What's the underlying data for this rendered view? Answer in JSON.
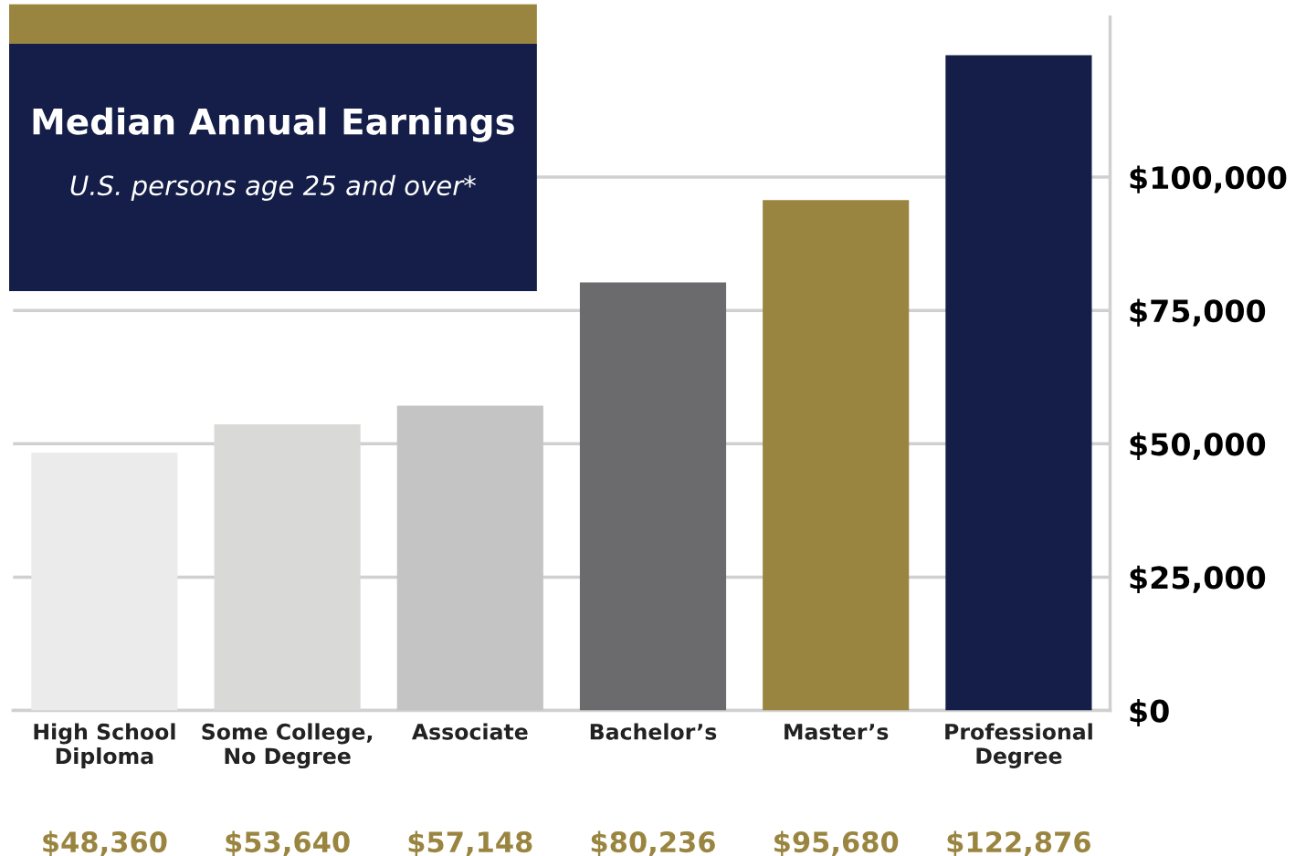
{
  "chart_data": {
    "type": "bar",
    "title": "Median Annual Earnings",
    "subtitle": "U.S. persons age 25 and over*",
    "categories": [
      "High School\nDiploma",
      "Some College,\nNo Degree",
      "Associate",
      "Bachelor’s",
      "Master’s",
      "Professional\nDegree"
    ],
    "values": [
      48360,
      53640,
      57148,
      80236,
      95680,
      122876
    ],
    "colors": [
      "#ebebeb",
      "#d9d9d8",
      "#c4c4c4",
      "#6b6b6e",
      "#9a8540",
      "#141e48"
    ],
    "value_labels": [
      "$48,360",
      "$53,640",
      "$57,148",
      "$80,236",
      "$95,680",
      "$122,876"
    ],
    "ylim": [
      0,
      130000
    ],
    "yticks": [
      {
        "value": 0,
        "label": "$0"
      },
      {
        "value": 25000,
        "label": "$25,000"
      },
      {
        "value": 50000,
        "label": "$50,000"
      },
      {
        "value": 75000,
        "label": "$75,000"
      },
      {
        "value": 100000,
        "label": "$100,000"
      }
    ],
    "grid": "y",
    "legend": false
  }
}
